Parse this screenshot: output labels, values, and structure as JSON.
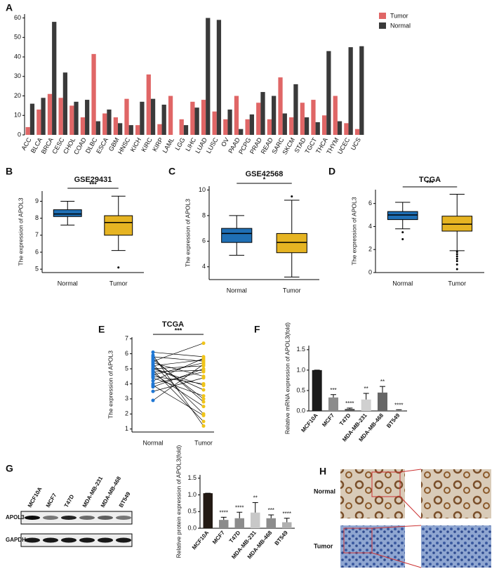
{
  "chart_data": [
    {
      "type": "bar",
      "label": "A",
      "categories": [
        "ACC",
        "BLCA",
        "BRCA",
        "CESC",
        "CHOL",
        "COAD",
        "DLBC",
        "ESCA",
        "GBM",
        "HNSC",
        "KICH",
        "KIRC",
        "KIRP",
        "LAML",
        "LGG",
        "LIHC",
        "LUAD",
        "LUSC",
        "OV",
        "PAAD",
        "PCPG",
        "PRAD",
        "READ",
        "SARC",
        "SKCM",
        "STAD",
        "TGCT",
        "THCA",
        "THYM",
        "UCEC",
        "UCS"
      ],
      "series": [
        {
          "name": "Tumor",
          "color": "#e06666",
          "values": [
            4,
            13,
            21,
            19,
            15,
            9,
            41.5,
            11,
            9,
            18.5,
            5,
            31,
            5.5,
            20,
            8,
            17,
            18,
            12,
            8,
            20,
            8,
            16.5,
            8,
            29.5,
            9,
            16.5,
            18,
            10,
            20,
            6,
            3
          ]
        },
        {
          "name": "Normal",
          "color": "#3a3a3a",
          "values": [
            16,
            19,
            58,
            32,
            17,
            18,
            7,
            13,
            6,
            5,
            17,
            18.5,
            15.5,
            null,
            5,
            14,
            60,
            59,
            13,
            3,
            10.5,
            22,
            20,
            11,
            26,
            9,
            6.5,
            43,
            7,
            45,
            45.5
          ]
        }
      ],
      "ylim": [
        0,
        62
      ],
      "yticks": [
        0,
        10,
        20,
        30,
        40,
        50,
        60
      ]
    },
    {
      "type": "box",
      "label": "B",
      "title": "GSE29431",
      "ylabel": "The expression of APOL3",
      "categories": [
        "Normal",
        "Tumor"
      ],
      "colors": [
        "#1f6fb5",
        "#e6b422"
      ],
      "significance": "***",
      "stats": [
        {
          "min": 7.6,
          "q1": 8.1,
          "median": 8.25,
          "q3": 8.5,
          "max": 9.0,
          "outliers": []
        },
        {
          "min": 6.1,
          "q1": 7.0,
          "median": 7.75,
          "q3": 8.15,
          "max": 9.3,
          "outliers": [
            5.1
          ]
        }
      ],
      "ylim": [
        4.8,
        9.6
      ],
      "yticks": [
        5,
        6,
        7,
        8,
        9
      ]
    },
    {
      "type": "box",
      "label": "C",
      "title": "GSE42568",
      "ylabel": "The expression of APOL3",
      "categories": [
        "Normal",
        "Tumor"
      ],
      "colors": [
        "#1f6fb5",
        "#e6b422"
      ],
      "significance": "*",
      "stats": [
        {
          "min": 4.9,
          "q1": 5.9,
          "median": 6.6,
          "q3": 7.0,
          "max": 8.0,
          "outliers": []
        },
        {
          "min": 3.2,
          "q1": 5.1,
          "median": 5.9,
          "q3": 6.6,
          "max": 9.2,
          "outliers": [
            9.5
          ]
        }
      ],
      "ylim": [
        3,
        10.3
      ],
      "yticks": [
        4,
        6,
        8,
        10
      ]
    },
    {
      "type": "box",
      "label": "D",
      "title": "TCGA",
      "ylabel": "The expression of APOL3",
      "categories": [
        "Normal",
        "Tumor"
      ],
      "colors": [
        "#1f6fb5",
        "#e6b422"
      ],
      "significance": "***",
      "stats": [
        {
          "min": 3.8,
          "q1": 4.6,
          "median": 5.0,
          "q3": 5.3,
          "max": 6.1,
          "outliers": [
            3.5,
            2.9
          ]
        },
        {
          "min": 1.9,
          "q1": 3.6,
          "median": 4.2,
          "q3": 4.9,
          "max": 6.8,
          "outliers": [
            1.8,
            1.6,
            1.4,
            1.2,
            1.0,
            0.7,
            0.3
          ]
        }
      ],
      "ylim": [
        0,
        7.2
      ],
      "yticks": [
        0,
        2,
        4,
        6
      ]
    },
    {
      "type": "paired",
      "label": "E",
      "title": "TCGA",
      "ylabel": "The expression of APOL3",
      "significance": "***",
      "series": [
        {
          "name": "Normal",
          "color": "#1f77d4",
          "values": [
            6.1,
            5.9,
            5.8,
            5.6,
            5.5,
            5.4,
            5.3,
            5.2,
            5.1,
            5.0,
            4.9,
            4.8,
            4.7,
            4.6,
            4.5,
            4.4,
            4.2,
            4.0,
            3.9,
            3.8,
            3.5,
            2.9,
            5.7,
            5.0
          ]
        },
        {
          "name": "Tumor",
          "color": "#f0c419",
          "values": [
            5.8,
            1.2,
            5.5,
            3.0,
            6.7,
            4.5,
            2.0,
            5.6,
            3.6,
            5.2,
            1.5,
            4.9,
            2.5,
            5.4,
            4.0,
            3.2,
            5.7,
            4.8,
            1.9,
            5.0,
            4.4,
            5.3,
            2.8,
            3.9
          ]
        }
      ],
      "ylim": [
        0.8,
        7.1
      ],
      "yticks": [
        1,
        2,
        3,
        4,
        5,
        6,
        7
      ]
    },
    {
      "type": "bar",
      "label": "F",
      "ylabel": "Relative mRNA expression of APOL3(fold)",
      "categories": [
        "MCF10A",
        "MCF7",
        "T47D",
        "MDA-MB-231",
        "MDA-MB-468",
        "BT549"
      ],
      "values": [
        1.0,
        0.33,
        0.05,
        0.28,
        0.45,
        0.02
      ],
      "errors": [
        0,
        0.07,
        0.02,
        0.15,
        0.15,
        0.01
      ],
      "significance": [
        null,
        "***",
        "****",
        "**",
        "**",
        "****"
      ],
      "colors": [
        "#1a1a1a",
        "#8c8c8c",
        "#555555",
        "#d0d0d0",
        "#666666",
        "#999999"
      ],
      "ylim": [
        0,
        1.6
      ],
      "yticks": [
        {
          "value": 0,
          "label": "0.0"
        },
        {
          "value": 0.5,
          "label": "0.5"
        },
        {
          "value": 1,
          "label": "1.0"
        },
        {
          "value": 1.5,
          "label": "1.5"
        }
      ]
    },
    {
      "type": "bar",
      "ylabel": "Relative protein expression of APOL3(fold)",
      "categories": [
        "MCF10A",
        "MCF7",
        "T47D",
        "MDA-MB-231",
        "MDA-MB-468",
        "BT549"
      ],
      "values": [
        1.05,
        0.25,
        0.3,
        0.47,
        0.3,
        0.18
      ],
      "errors": [
        0,
        0.08,
        0.18,
        0.3,
        0.1,
        0.12
      ],
      "significance": [
        null,
        "****",
        "****",
        "**",
        "***",
        "****"
      ],
      "colors": [
        "#231a14",
        "#8c8c8c",
        "#8c8c8c",
        "#c8c8c8",
        "#8c8c8c",
        "#b0b0b0"
      ],
      "ylim": [
        0,
        1.6
      ],
      "yticks": [
        {
          "value": 0,
          "label": "0.0"
        },
        {
          "value": 0.5,
          "label": "0.5"
        },
        {
          "value": 1,
          "label": "1.0"
        },
        {
          "value": 1.5,
          "label": "1.5"
        }
      ]
    }
  ],
  "blot": {
    "label": "G",
    "lanes": [
      "MCF10A",
      "MCF7",
      "T47D",
      "MDA-MB-231",
      "MDA-MB-468",
      "BT549"
    ],
    "rows": [
      "APOL3",
      "GAPDH"
    ]
  },
  "ihc": {
    "label": "H",
    "rows": [
      "Normal",
      "Tumor"
    ]
  }
}
